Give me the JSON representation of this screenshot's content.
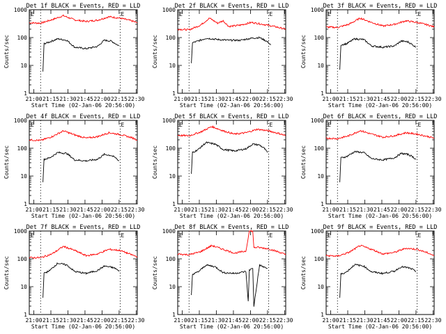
{
  "chart_data": [
    {
      "type": "line",
      "title": "Det 1f BLACK = Events, RED = LLD",
      "ylabel": "Counts/sec",
      "xlabel": "Start Time (02-Jan-06 20:56:00)",
      "x_ticks": [
        "21:00",
        "21:15",
        "21:30",
        "21:45",
        "22:00",
        "22:15",
        "22:30"
      ],
      "y_ticks": [
        "1",
        "10",
        "100",
        "1000"
      ],
      "yscale": "log",
      "ylim": [
        1,
        1000
      ],
      "x_range_minutes": [
        0,
        95
      ],
      "markers": [
        {
          "x": 10,
          "label": ""
        },
        {
          "x": 80,
          "label": "E"
        }
      ],
      "start_marker_label": "E",
      "series": [
        {
          "color": "#ff0000",
          "x": [
            0,
            10,
            20,
            30,
            40,
            50,
            60,
            70,
            80,
            90,
            95
          ],
          "y": [
            340,
            330,
            440,
            610,
            430,
            380,
            420,
            560,
            500,
            400,
            340
          ]
        },
        {
          "color": "#000000",
          "x": [
            12,
            13,
            18,
            25,
            33,
            40,
            50,
            60,
            66,
            72,
            76,
            79
          ],
          "y": [
            6,
            60,
            70,
            90,
            80,
            45,
            40,
            48,
            80,
            75,
            60,
            50
          ]
        }
      ]
    },
    {
      "type": "line",
      "title": "Det 2f BLACK = Events, RED = LLD",
      "ylabel": "Counts/sec",
      "xlabel": "Start Time (02-Jan-06 20:56:00)",
      "x_ticks": [
        "21:00",
        "21:15",
        "21:30",
        "21:45",
        "22:00",
        "22:15",
        "22:30"
      ],
      "y_ticks": [
        "1",
        "10",
        "100",
        "1000"
      ],
      "yscale": "log",
      "ylim": [
        1,
        1000
      ],
      "x_range_minutes": [
        0,
        95
      ],
      "markers": [
        {
          "x": 10,
          "label": ""
        },
        {
          "x": 80,
          "label": "E"
        }
      ],
      "start_marker_label": "E",
      "series": [
        {
          "color": "#ff0000",
          "x": [
            0,
            10,
            20,
            28,
            35,
            40,
            45,
            55,
            65,
            75,
            85,
            95
          ],
          "y": [
            200,
            190,
            280,
            500,
            330,
            400,
            250,
            280,
            350,
            300,
            250,
            200
          ]
        },
        {
          "color": "#000000",
          "x": [
            12,
            13,
            18,
            25,
            35,
            45,
            55,
            65,
            72,
            78,
            82
          ],
          "y": [
            12,
            65,
            75,
            95,
            85,
            80,
            80,
            95,
            100,
            75,
            55
          ]
        }
      ]
    },
    {
      "type": "line",
      "title": "Det 3f BLACK = Events, RED = LLD",
      "ylabel": "Counts/sec",
      "xlabel": "Start Time (02-Jan-06 20:56:00)",
      "x_ticks": [
        "21:00",
        "21:15",
        "21:30",
        "21:45",
        "22:00",
        "22:15",
        "22:30"
      ],
      "y_ticks": [
        "1",
        "10",
        "100",
        "1000"
      ],
      "yscale": "log",
      "ylim": [
        1,
        1000
      ],
      "x_range_minutes": [
        0,
        95
      ],
      "markers": [
        {
          "x": 10,
          "label": ""
        },
        {
          "x": 80,
          "label": "E"
        }
      ],
      "start_marker_label": "E",
      "series": [
        {
          "color": "#ff0000",
          "x": [
            0,
            10,
            20,
            30,
            40,
            50,
            60,
            70,
            80,
            90,
            95
          ],
          "y": [
            240,
            230,
            300,
            500,
            350,
            260,
            300,
            400,
            350,
            280,
            240
          ]
        },
        {
          "color": "#000000",
          "x": [
            12,
            13,
            18,
            25,
            33,
            40,
            50,
            60,
            66,
            72,
            76,
            79
          ],
          "y": [
            7,
            55,
            60,
            90,
            85,
            50,
            45,
            50,
            75,
            70,
            55,
            45
          ]
        }
      ]
    },
    {
      "type": "line",
      "title": "Det 4f BLACK = Events, RED = LLD",
      "ylabel": "Counts/sec",
      "xlabel": "Start Time (02-Jan-06 20:56:00)",
      "x_ticks": [
        "21:00",
        "21:15",
        "21:30",
        "21:45",
        "22:00",
        "22:15",
        "22:30"
      ],
      "y_ticks": [
        "1",
        "10",
        "100",
        "1000"
      ],
      "yscale": "log",
      "ylim": [
        1,
        1000
      ],
      "x_range_minutes": [
        0,
        95
      ],
      "markers": [
        {
          "x": 10,
          "label": ""
        },
        {
          "x": 80,
          "label": "E"
        }
      ],
      "start_marker_label": "E",
      "series": [
        {
          "color": "#ff0000",
          "x": [
            0,
            10,
            20,
            30,
            40,
            50,
            60,
            70,
            80,
            90,
            95
          ],
          "y": [
            200,
            190,
            260,
            420,
            300,
            230,
            260,
            360,
            310,
            240,
            200
          ]
        },
        {
          "color": "#000000",
          "x": [
            12,
            13,
            18,
            25,
            33,
            40,
            50,
            60,
            66,
            72,
            76,
            79
          ],
          "y": [
            6,
            40,
            45,
            70,
            65,
            38,
            35,
            40,
            60,
            55,
            45,
            35
          ]
        }
      ]
    },
    {
      "type": "line",
      "title": "Det 5f BLACK = Events, RED = LLD",
      "ylabel": "Counts/sec",
      "xlabel": "Start Time (02-Jan-06 20:56:00)",
      "x_ticks": [
        "21:00",
        "21:15",
        "21:30",
        "21:45",
        "22:00",
        "22:15",
        "22:30"
      ],
      "y_ticks": [
        "1",
        "10",
        "100",
        "1000"
      ],
      "yscale": "log",
      "ylim": [
        1,
        1000
      ],
      "x_range_minutes": [
        0,
        95
      ],
      "markers": [
        {
          "x": 10,
          "label": ""
        },
        {
          "x": 80,
          "label": "E"
        }
      ],
      "start_marker_label": "E",
      "series": [
        {
          "color": "#ff0000",
          "x": [
            0,
            10,
            20,
            30,
            40,
            50,
            60,
            70,
            80,
            90,
            95
          ],
          "y": [
            290,
            280,
            380,
            600,
            420,
            320,
            360,
            480,
            420,
            330,
            280
          ]
        },
        {
          "color": "#000000",
          "x": [
            12,
            13,
            18,
            25,
            33,
            40,
            50,
            60,
            66,
            72,
            76,
            79
          ],
          "y": [
            12,
            70,
            90,
            160,
            140,
            90,
            80,
            95,
            140,
            130,
            100,
            70
          ]
        }
      ]
    },
    {
      "type": "line",
      "title": "Det 6f BLACK = Events, RED = LLD",
      "ylabel": "Counts/sec",
      "xlabel": "Start Time (02-Jan-06 20:56:00)",
      "x_ticks": [
        "21:00",
        "21:15",
        "21:30",
        "21:45",
        "22:00",
        "22:15",
        "22:30"
      ],
      "y_ticks": [
        "1",
        "10",
        "100",
        "1000"
      ],
      "yscale": "log",
      "ylim": [
        1,
        1000
      ],
      "x_range_minutes": [
        0,
        95
      ],
      "markers": [
        {
          "x": 10,
          "label": ""
        },
        {
          "x": 80,
          "label": "E"
        }
      ],
      "start_marker_label": "E",
      "series": [
        {
          "color": "#ff0000",
          "x": [
            0,
            10,
            20,
            30,
            40,
            50,
            60,
            70,
            80,
            90,
            95
          ],
          "y": [
            230,
            220,
            280,
            430,
            320,
            250,
            280,
            360,
            320,
            260,
            230
          ]
        },
        {
          "color": "#000000",
          "x": [
            12,
            13,
            18,
            25,
            33,
            40,
            50,
            60,
            66,
            72,
            76,
            79
          ],
          "y": [
            6,
            45,
            50,
            75,
            70,
            42,
            38,
            45,
            65,
            60,
            50,
            40
          ]
        }
      ]
    },
    {
      "type": "line",
      "title": "Det 7f BLACK = Events, RED = LLD",
      "ylabel": "Counts/sec",
      "xlabel": "Start Time (02-Jan-06 20:56:00)",
      "x_ticks": [
        "21:00",
        "21:15",
        "21:30",
        "21:45",
        "22:00",
        "22:15",
        "22:30"
      ],
      "y_ticks": [
        "1",
        "10",
        "100",
        "1000"
      ],
      "yscale": "log",
      "ylim": [
        1,
        1000
      ],
      "x_range_minutes": [
        0,
        95
      ],
      "markers": [
        {
          "x": 10,
          "label": ""
        },
        {
          "x": 80,
          "label": "E"
        }
      ],
      "start_marker_label": "E",
      "series": [
        {
          "color": "#ff0000",
          "x": [
            0,
            10,
            20,
            30,
            40,
            50,
            60,
            70,
            80,
            90,
            95
          ],
          "y": [
            110,
            110,
            150,
            280,
            200,
            130,
            150,
            220,
            200,
            140,
            120
          ]
        },
        {
          "color": "#000000",
          "x": [
            12,
            13,
            18,
            25,
            33,
            40,
            50,
            60,
            66,
            72,
            76,
            79
          ],
          "y": [
            4,
            30,
            38,
            70,
            60,
            35,
            30,
            38,
            55,
            50,
            45,
            35
          ]
        }
      ]
    },
    {
      "type": "line",
      "title": "Det 8f BLACK = Events, RED = LLD",
      "ylabel": "Counts/sec",
      "xlabel": "Start Time (02-Jan-06 20:56:00)",
      "x_ticks": [
        "21:00",
        "21:15",
        "21:30",
        "21:45",
        "22:00",
        "22:15",
        "22:30"
      ],
      "y_ticks": [
        "1",
        "10",
        "100",
        "1000"
      ],
      "yscale": "log",
      "ylim": [
        1,
        1000
      ],
      "x_range_minutes": [
        0,
        95
      ],
      "markers": [
        {
          "x": 10,
          "label": ""
        },
        {
          "x": 80,
          "label": "E"
        }
      ],
      "start_marker_label": "E",
      "series": [
        {
          "color": "#ff0000",
          "x": [
            0,
            10,
            20,
            30,
            40,
            50,
            60,
            63,
            64,
            66,
            67,
            70,
            80,
            90,
            95
          ],
          "y": [
            150,
            140,
            180,
            300,
            220,
            160,
            190,
            1000,
            1000,
            1000,
            250,
            260,
            230,
            170,
            140
          ]
        },
        {
          "color": "#000000",
          "x": [
            12,
            13,
            18,
            25,
            33,
            40,
            50,
            60,
            62,
            63,
            66,
            67,
            72,
            76,
            79
          ],
          "y": [
            5,
            28,
            34,
            60,
            52,
            32,
            30,
            35,
            3,
            40,
            45,
            2,
            60,
            50,
            45
          ]
        }
      ]
    },
    {
      "type": "line",
      "title": "Det 9f BLACK = Events, RED = LLD",
      "ylabel": "Counts/sec",
      "xlabel": "Start Time (02-Jan-06 20:56:00)",
      "x_ticks": [
        "21:00",
        "21:15",
        "21:30",
        "21:45",
        "22:00",
        "22:15",
        "22:30"
      ],
      "y_ticks": [
        "1",
        "10",
        "100",
        "1000"
      ],
      "yscale": "log",
      "ylim": [
        1,
        1000
      ],
      "x_range_minutes": [
        0,
        95
      ],
      "markers": [
        {
          "x": 10,
          "label": ""
        },
        {
          "x": 80,
          "label": "E"
        }
      ],
      "start_marker_label": "E",
      "series": [
        {
          "color": "#ff0000",
          "x": [
            0,
            10,
            20,
            30,
            40,
            50,
            60,
            70,
            80,
            90,
            95
          ],
          "y": [
            130,
            125,
            170,
            300,
            220,
            150,
            170,
            240,
            220,
            160,
            130
          ]
        },
        {
          "color": "#000000",
          "x": [
            12,
            13,
            18,
            25,
            33,
            40,
            50,
            60,
            66,
            72,
            76,
            79
          ],
          "y": [
            4,
            28,
            34,
            62,
            55,
            34,
            30,
            36,
            52,
            48,
            42,
            34
          ]
        }
      ]
    }
  ]
}
